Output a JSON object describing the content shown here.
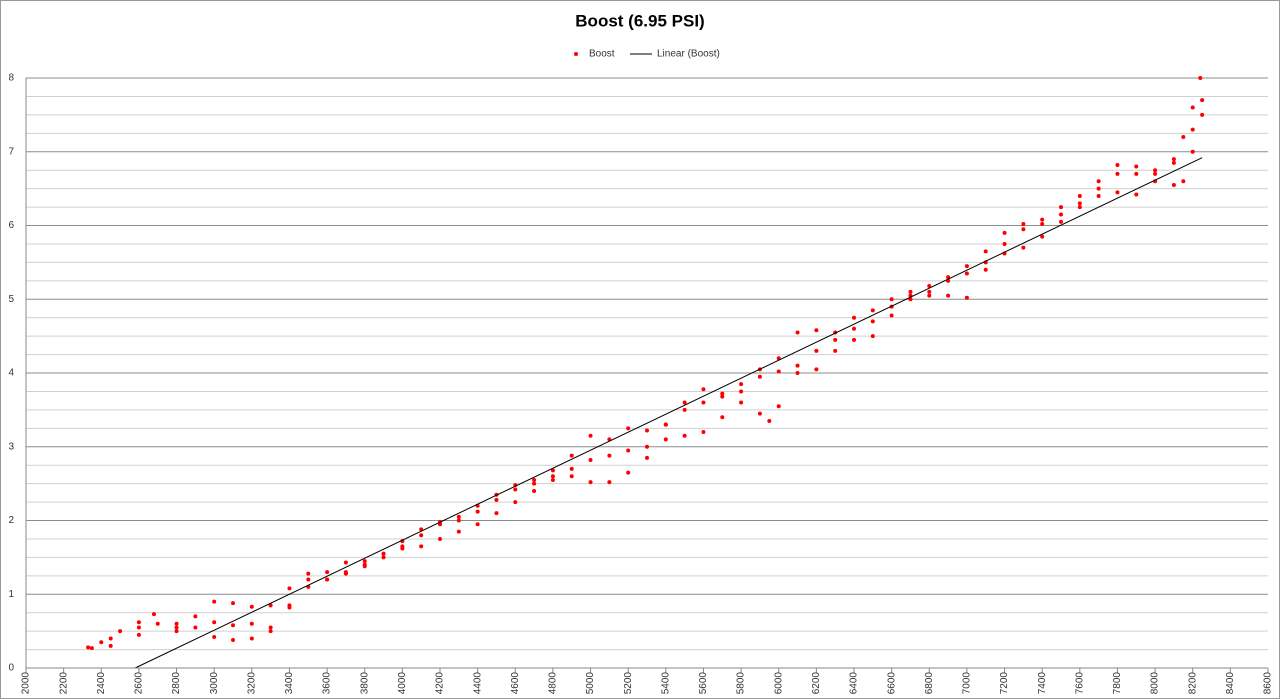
{
  "chart_data": {
    "type": "scatter",
    "title": "Boost (6.95 PSI)",
    "xlim": [
      2000,
      8600
    ],
    "xticks": [
      2000,
      2200,
      2400,
      2600,
      2800,
      3000,
      3200,
      3400,
      3600,
      3800,
      4000,
      4200,
      4400,
      4600,
      4800,
      5000,
      5200,
      5400,
      5600,
      5800,
      6000,
      6200,
      6400,
      6600,
      6800,
      7000,
      7200,
      7400,
      7600,
      7800,
      8000,
      8200,
      8400,
      8600
    ],
    "ylim": [
      0,
      8
    ],
    "yticks": [
      0,
      1,
      2,
      3,
      4,
      5,
      6,
      7,
      8
    ],
    "y_minor_ticks": [
      0.25,
      0.5,
      0.75,
      1.25,
      1.5,
      1.75,
      2.25,
      2.5,
      2.75,
      3.25,
      3.5,
      3.75,
      4.25,
      4.5,
      4.75,
      5.25,
      5.5,
      5.75,
      6.25,
      6.5,
      6.75,
      7.25,
      7.5,
      7.75
    ],
    "grid": true,
    "legend": "top",
    "series": [
      {
        "name": "Boost",
        "color": "#ff0000",
        "x": [
          2330,
          2400,
          2500,
          2600,
          2680,
          2800,
          2900,
          3000,
          3100,
          3200,
          3300,
          3400,
          3500,
          3600,
          3700,
          3800,
          3900,
          4000,
          4100,
          4200,
          4300,
          4400,
          4500,
          4600,
          4700,
          4800,
          4900,
          5000,
          5100,
          5200,
          5300,
          5400,
          5500,
          5600,
          5700,
          5800,
          5900,
          6000,
          6100,
          6200,
          6300,
          6400,
          6500,
          6600,
          6700,
          6800,
          6900,
          7000,
          7100,
          7200,
          7300,
          7400,
          7500,
          7600,
          7700,
          7800,
          7900,
          8000,
          8100,
          8150,
          8200,
          8240,
          2350,
          2450,
          2600,
          2700,
          2800,
          2900,
          3000,
          3100,
          3200,
          3300,
          3400,
          3500,
          3600,
          3700,
          3800,
          3900,
          4000,
          4100,
          4200,
          4300,
          4400,
          4500,
          4600,
          4700,
          4800,
          4900,
          5000,
          5100,
          5200,
          5300,
          5400,
          5500,
          5600,
          5700,
          5800,
          5900,
          5950,
          6000,
          6100,
          6200,
          6300,
          6400,
          6500,
          6600,
          6700,
          6800,
          6900,
          7000,
          7100,
          7200,
          7300,
          7400,
          7500,
          7600,
          7700,
          7800,
          7900,
          8000,
          8100,
          8150,
          8200,
          8250,
          2450,
          2600,
          2800,
          3000,
          3100,
          3200,
          3300,
          3400,
          3500,
          3600,
          3700,
          3800,
          3900,
          4000,
          4100,
          4200,
          4300,
          4400,
          4500,
          4600,
          4700,
          4800,
          4900,
          5000,
          5100,
          5200,
          5300,
          5400,
          5500,
          5600,
          5700,
          5800,
          5900,
          6000,
          6100,
          6200,
          6300,
          6400,
          6500,
          6600,
          6700,
          6800,
          6900,
          7000,
          7100,
          7200,
          7300,
          7400,
          7500,
          7600,
          7700,
          7800,
          7900,
          8000,
          8100,
          8200,
          8250
        ],
        "y": [
          0.28,
          0.35,
          0.5,
          0.62,
          0.73,
          0.6,
          0.55,
          0.9,
          0.88,
          0.83,
          0.85,
          1.08,
          1.28,
          1.3,
          1.43,
          1.45,
          1.55,
          1.72,
          1.88,
          1.98,
          2.05,
          2.2,
          2.35,
          2.48,
          2.55,
          2.68,
          2.88,
          3.15,
          3.1,
          3.25,
          3.22,
          3.3,
          3.6,
          3.78,
          3.72,
          3.85,
          4.05,
          4.2,
          4.55,
          4.58,
          4.55,
          4.75,
          4.85,
          5.0,
          5.1,
          5.18,
          5.3,
          5.45,
          5.65,
          5.9,
          6.02,
          6.08,
          6.25,
          6.4,
          6.6,
          6.82,
          6.8,
          6.75,
          6.9,
          7.2,
          7.6,
          8.0,
          0.27,
          0.4,
          0.55,
          0.6,
          0.55,
          0.7,
          0.62,
          0.58,
          0.6,
          0.55,
          0.85,
          1.2,
          1.2,
          1.3,
          1.4,
          1.55,
          1.65,
          1.65,
          1.75,
          1.85,
          1.95,
          2.1,
          2.25,
          2.4,
          2.55,
          2.6,
          2.52,
          2.52,
          2.65,
          2.85,
          3.1,
          3.15,
          3.2,
          3.4,
          3.6,
          3.45,
          3.35,
          3.55,
          4.0,
          4.05,
          4.3,
          4.45,
          4.5,
          4.78,
          5.05,
          5.1,
          5.05,
          5.02,
          5.4,
          5.62,
          5.7,
          5.85,
          6.05,
          6.25,
          6.4,
          6.45,
          6.42,
          6.6,
          6.55,
          6.6,
          7.0,
          7.7,
          0.3,
          0.45,
          0.5,
          0.42,
          0.38,
          0.4,
          0.5,
          0.82,
          1.1,
          1.2,
          1.28,
          1.38,
          1.5,
          1.62,
          1.8,
          1.95,
          2.0,
          2.12,
          2.28,
          2.42,
          2.5,
          2.6,
          2.7,
          2.82,
          2.88,
          2.95,
          3.0,
          3.3,
          3.5,
          3.6,
          3.68,
          3.75,
          3.95,
          4.02,
          4.1,
          4.3,
          4.45,
          4.6,
          4.7,
          4.9,
          5.0,
          5.05,
          5.25,
          5.35,
          5.5,
          5.75,
          5.95,
          6.02,
          6.15,
          6.3,
          6.5,
          6.7,
          6.7,
          6.7,
          6.85,
          7.3,
          7.5
        ]
      }
    ],
    "trendline": {
      "name": "Linear (Boost)",
      "color": "#000000",
      "x": [
        2580,
        8250
      ],
      "y": [
        0,
        6.92
      ]
    }
  }
}
